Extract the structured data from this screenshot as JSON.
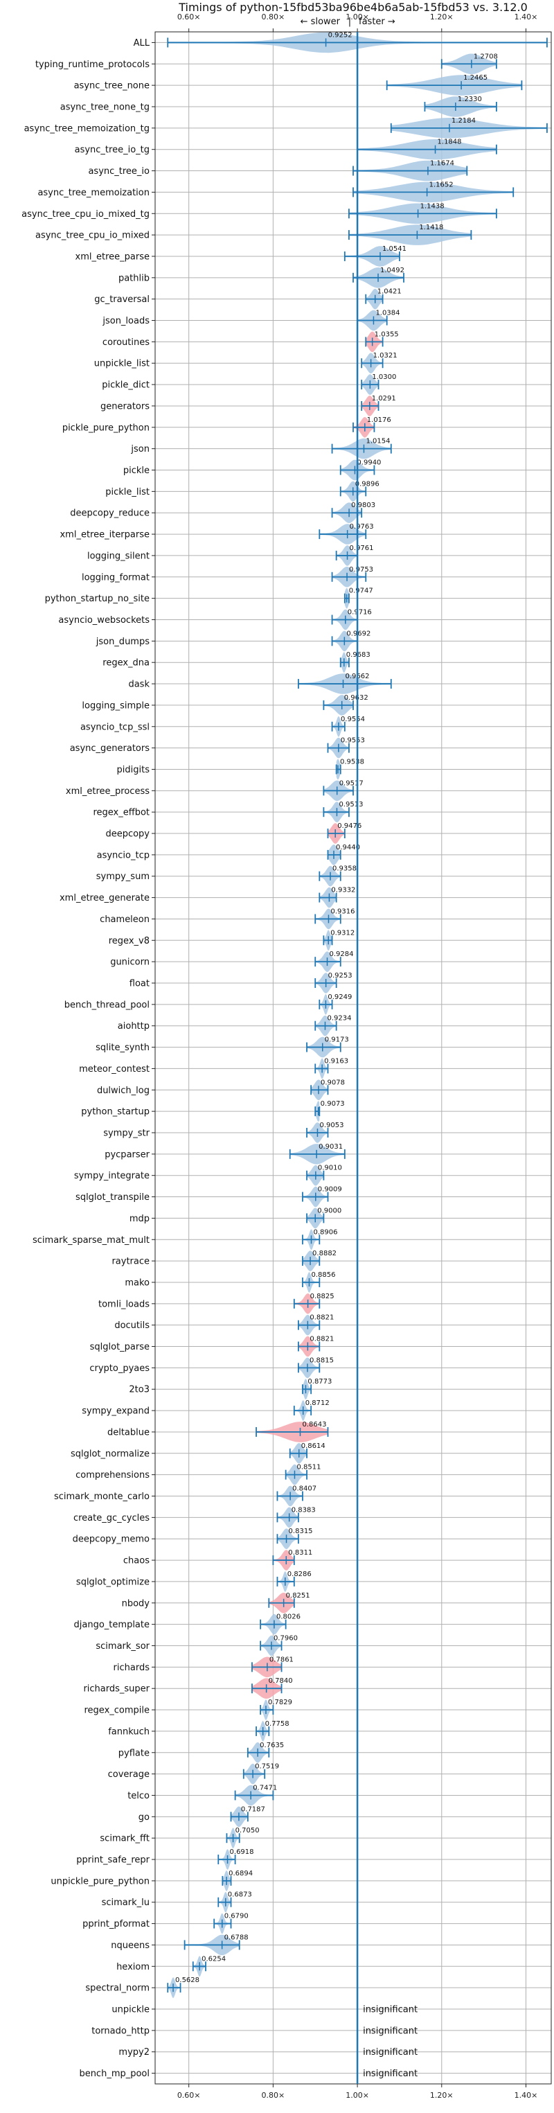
{
  "chart_data": {
    "type": "violin",
    "title": "Timings of python-15fbd53ba96be4b6a5ab-15fbd53 vs. 3.12.0",
    "subtitle_left": "← slower",
    "subtitle_sep": "|",
    "subtitle_right": "faster →",
    "xlim": [
      0.52,
      1.46
    ],
    "x_ticks": [
      0.6,
      0.8,
      1.0,
      1.2,
      1.4
    ],
    "x_tick_labels": [
      "0.60×",
      "0.80×",
      "1.00×",
      "1.20×",
      "1.40×"
    ],
    "reference_line": 1.0,
    "grid": true,
    "insignificant_label": "insignificant",
    "benchmarks": [
      {
        "name": "ALL",
        "value": 0.9252,
        "label": "0.9252",
        "lo": 0.55,
        "hi": 1.45,
        "spread": 0.16,
        "sig": true
      },
      {
        "name": "typing_runtime_protocols",
        "value": 1.2708,
        "label": "1.2708",
        "lo": 1.2,
        "hi": 1.33,
        "spread": 0.06,
        "sig": true
      },
      {
        "name": "async_tree_none",
        "value": 1.2465,
        "label": "1.2465",
        "lo": 1.07,
        "hi": 1.39,
        "spread": 0.14,
        "sig": true
      },
      {
        "name": "async_tree_none_tg",
        "value": 1.233,
        "label": "1.2330",
        "lo": 1.16,
        "hi": 1.33,
        "spread": 0.08,
        "sig": true
      },
      {
        "name": "async_tree_memoization_tg",
        "value": 1.2184,
        "label": "1.2184",
        "lo": 1.08,
        "hi": 1.45,
        "spread": 0.17,
        "sig": true
      },
      {
        "name": "async_tree_io_tg",
        "value": 1.1848,
        "label": "1.1848",
        "lo": 1.0,
        "hi": 1.33,
        "spread": 0.15,
        "sig": true
      },
      {
        "name": "async_tree_io",
        "value": 1.1674,
        "label": "1.1674",
        "lo": 0.99,
        "hi": 1.26,
        "spread": 0.12,
        "sig": true
      },
      {
        "name": "async_tree_memoization",
        "value": 1.1652,
        "label": "1.1652",
        "lo": 0.99,
        "hi": 1.37,
        "spread": 0.16,
        "sig": true
      },
      {
        "name": "async_tree_cpu_io_mixed_tg",
        "value": 1.1438,
        "label": "1.1438",
        "lo": 0.98,
        "hi": 1.33,
        "spread": 0.14,
        "sig": true
      },
      {
        "name": "async_tree_cpu_io_mixed",
        "value": 1.1418,
        "label": "1.1418",
        "lo": 0.98,
        "hi": 1.27,
        "spread": 0.13,
        "sig": true
      },
      {
        "name": "xml_etree_parse",
        "value": 1.0541,
        "label": "1.0541",
        "lo": 0.97,
        "hi": 1.1,
        "spread": 0.05,
        "sig": true
      },
      {
        "name": "pathlib",
        "value": 1.0492,
        "label": "1.0492",
        "lo": 0.99,
        "hi": 1.11,
        "spread": 0.05,
        "sig": true
      },
      {
        "name": "gc_traversal",
        "value": 1.0421,
        "label": "1.0421",
        "lo": 1.02,
        "hi": 1.06,
        "spread": 0.02,
        "sig": true
      },
      {
        "name": "json_loads",
        "value": 1.0384,
        "label": "1.0384",
        "lo": 1.0,
        "hi": 1.07,
        "spread": 0.03,
        "sig": true
      },
      {
        "name": "coroutines",
        "value": 1.0355,
        "label": "1.0355",
        "lo": 1.02,
        "hi": 1.06,
        "spread": 0.02,
        "sig": true
      },
      {
        "name": "unpickle_list",
        "value": 1.0321,
        "label": "1.0321",
        "lo": 1.01,
        "hi": 1.06,
        "spread": 0.02,
        "sig": true
      },
      {
        "name": "pickle_dict",
        "value": 1.03,
        "label": "1.0300",
        "lo": 1.01,
        "hi": 1.05,
        "spread": 0.02,
        "sig": true
      },
      {
        "name": "generators",
        "value": 1.0291,
        "label": "1.0291",
        "lo": 1.01,
        "hi": 1.05,
        "spread": 0.02,
        "sig": true
      },
      {
        "name": "pickle_pure_python",
        "value": 1.0176,
        "label": "1.0176",
        "lo": 0.99,
        "hi": 1.04,
        "spread": 0.02,
        "sig": true
      },
      {
        "name": "json",
        "value": 1.0154,
        "label": "1.0154",
        "lo": 0.94,
        "hi": 1.08,
        "spread": 0.05,
        "sig": true
      },
      {
        "name": "pickle",
        "value": 0.994,
        "label": "0.9940",
        "lo": 0.96,
        "hi": 1.04,
        "spread": 0.03,
        "sig": true
      },
      {
        "name": "pickle_list",
        "value": 0.9896,
        "label": "0.9896",
        "lo": 0.96,
        "hi": 1.02,
        "spread": 0.02,
        "sig": true
      },
      {
        "name": "deepcopy_reduce",
        "value": 0.9803,
        "label": "0.9803",
        "lo": 0.94,
        "hi": 1.01,
        "spread": 0.03,
        "sig": true
      },
      {
        "name": "xml_etree_iterparse",
        "value": 0.9763,
        "label": "0.9763",
        "lo": 0.91,
        "hi": 1.02,
        "spread": 0.04,
        "sig": true
      },
      {
        "name": "logging_silent",
        "value": 0.9761,
        "label": "0.9761",
        "lo": 0.95,
        "hi": 1.0,
        "spread": 0.02,
        "sig": true
      },
      {
        "name": "logging_format",
        "value": 0.9753,
        "label": "0.9753",
        "lo": 0.94,
        "hi": 1.02,
        "spread": 0.03,
        "sig": true
      },
      {
        "name": "python_startup_no_site",
        "value": 0.9747,
        "label": "0.9747",
        "lo": 0.97,
        "hi": 0.98,
        "spread": 0.01,
        "sig": true
      },
      {
        "name": "asyncio_websockets",
        "value": 0.9716,
        "label": "0.9716",
        "lo": 0.94,
        "hi": 1.0,
        "spread": 0.02,
        "sig": true
      },
      {
        "name": "json_dumps",
        "value": 0.9692,
        "label": "0.9692",
        "lo": 0.94,
        "hi": 1.0,
        "spread": 0.02,
        "sig": true
      },
      {
        "name": "regex_dna",
        "value": 0.9683,
        "label": "0.9683",
        "lo": 0.96,
        "hi": 0.98,
        "spread": 0.01,
        "sig": true
      },
      {
        "name": "dask",
        "value": 0.9662,
        "label": "0.9662",
        "lo": 0.86,
        "hi": 1.08,
        "spread": 0.07,
        "sig": true
      },
      {
        "name": "logging_simple",
        "value": 0.9632,
        "label": "0.9632",
        "lo": 0.92,
        "hi": 0.99,
        "spread": 0.03,
        "sig": true
      },
      {
        "name": "asyncio_tcp_ssl",
        "value": 0.9554,
        "label": "0.9554",
        "lo": 0.94,
        "hi": 0.97,
        "spread": 0.01,
        "sig": true
      },
      {
        "name": "async_generators",
        "value": 0.9553,
        "label": "0.9553",
        "lo": 0.93,
        "hi": 0.98,
        "spread": 0.02,
        "sig": true
      },
      {
        "name": "pidigits",
        "value": 0.9538,
        "label": "0.9538",
        "lo": 0.95,
        "hi": 0.96,
        "spread": 0.01,
        "sig": true
      },
      {
        "name": "xml_etree_process",
        "value": 0.9517,
        "label": "0.9517",
        "lo": 0.92,
        "hi": 0.99,
        "spread": 0.03,
        "sig": true
      },
      {
        "name": "regex_effbot",
        "value": 0.9513,
        "label": "0.9513",
        "lo": 0.92,
        "hi": 0.98,
        "spread": 0.02,
        "sig": true
      },
      {
        "name": "deepcopy",
        "value": 0.9476,
        "label": "0.9476",
        "lo": 0.93,
        "hi": 0.97,
        "spread": 0.02,
        "sig": true
      },
      {
        "name": "asyncio_tcp",
        "value": 0.944,
        "label": "0.9440",
        "lo": 0.93,
        "hi": 0.96,
        "spread": 0.02,
        "sig": true
      },
      {
        "name": "sympy_sum",
        "value": 0.9358,
        "label": "0.9358",
        "lo": 0.91,
        "hi": 0.96,
        "spread": 0.02,
        "sig": true
      },
      {
        "name": "xml_etree_generate",
        "value": 0.9332,
        "label": "0.9332",
        "lo": 0.91,
        "hi": 0.95,
        "spread": 0.02,
        "sig": true
      },
      {
        "name": "chameleon",
        "value": 0.9316,
        "label": "0.9316",
        "lo": 0.9,
        "hi": 0.96,
        "spread": 0.02,
        "sig": true
      },
      {
        "name": "regex_v8",
        "value": 0.9312,
        "label": "0.9312",
        "lo": 0.92,
        "hi": 0.94,
        "spread": 0.01,
        "sig": true
      },
      {
        "name": "gunicorn",
        "value": 0.9284,
        "label": "0.9284",
        "lo": 0.9,
        "hi": 0.96,
        "spread": 0.02,
        "sig": true
      },
      {
        "name": "float",
        "value": 0.9253,
        "label": "0.9253",
        "lo": 0.9,
        "hi": 0.95,
        "spread": 0.02,
        "sig": true
      },
      {
        "name": "bench_thread_pool",
        "value": 0.9249,
        "label": "0.9249",
        "lo": 0.91,
        "hi": 0.94,
        "spread": 0.01,
        "sig": true
      },
      {
        "name": "aiohttp",
        "value": 0.9234,
        "label": "0.9234",
        "lo": 0.9,
        "hi": 0.95,
        "spread": 0.02,
        "sig": true
      },
      {
        "name": "sqlite_synth",
        "value": 0.9173,
        "label": "0.9173",
        "lo": 0.88,
        "hi": 0.96,
        "spread": 0.03,
        "sig": true
      },
      {
        "name": "meteor_contest",
        "value": 0.9163,
        "label": "0.9163",
        "lo": 0.9,
        "hi": 0.93,
        "spread": 0.01,
        "sig": true
      },
      {
        "name": "dulwich_log",
        "value": 0.9078,
        "label": "0.9078",
        "lo": 0.89,
        "hi": 0.93,
        "spread": 0.02,
        "sig": true
      },
      {
        "name": "python_startup",
        "value": 0.9073,
        "label": "0.9073",
        "lo": 0.9,
        "hi": 0.91,
        "spread": 0.01,
        "sig": true
      },
      {
        "name": "sympy_str",
        "value": 0.9053,
        "label": "0.9053",
        "lo": 0.88,
        "hi": 0.93,
        "spread": 0.02,
        "sig": true
      },
      {
        "name": "pycparser",
        "value": 0.9031,
        "label": "0.9031",
        "lo": 0.84,
        "hi": 0.97,
        "spread": 0.05,
        "sig": true
      },
      {
        "name": "sympy_integrate",
        "value": 0.901,
        "label": "0.9010",
        "lo": 0.88,
        "hi": 0.92,
        "spread": 0.02,
        "sig": true
      },
      {
        "name": "sqlglot_transpile",
        "value": 0.9009,
        "label": "0.9009",
        "lo": 0.87,
        "hi": 0.93,
        "spread": 0.02,
        "sig": true
      },
      {
        "name": "mdp",
        "value": 0.9,
        "label": "0.9000",
        "lo": 0.88,
        "hi": 0.92,
        "spread": 0.02,
        "sig": true
      },
      {
        "name": "scimark_sparse_mat_mult",
        "value": 0.8906,
        "label": "0.8906",
        "lo": 0.87,
        "hi": 0.91,
        "spread": 0.01,
        "sig": true
      },
      {
        "name": "raytrace",
        "value": 0.8882,
        "label": "0.8882",
        "lo": 0.87,
        "hi": 0.91,
        "spread": 0.02,
        "sig": true
      },
      {
        "name": "mako",
        "value": 0.8856,
        "label": "0.8856",
        "lo": 0.87,
        "hi": 0.91,
        "spread": 0.01,
        "sig": true
      },
      {
        "name": "tomli_loads",
        "value": 0.8825,
        "label": "0.8825",
        "lo": 0.85,
        "hi": 0.91,
        "spread": 0.02,
        "sig": true
      },
      {
        "name": "docutils",
        "value": 0.8821,
        "label": "0.8821",
        "lo": 0.86,
        "hi": 0.91,
        "spread": 0.02,
        "sig": true
      },
      {
        "name": "sqlglot_parse",
        "value": 0.8821,
        "label": "0.8821",
        "lo": 0.86,
        "hi": 0.91,
        "spread": 0.02,
        "sig": true
      },
      {
        "name": "crypto_pyaes",
        "value": 0.8815,
        "label": "0.8815",
        "lo": 0.86,
        "hi": 0.91,
        "spread": 0.02,
        "sig": true
      },
      {
        "name": "2to3",
        "value": 0.8773,
        "label": "0.8773",
        "lo": 0.87,
        "hi": 0.89,
        "spread": 0.01,
        "sig": true
      },
      {
        "name": "sympy_expand",
        "value": 0.8712,
        "label": "0.8712",
        "lo": 0.85,
        "hi": 0.89,
        "spread": 0.01,
        "sig": true
      },
      {
        "name": "deltablue",
        "value": 0.8643,
        "label": "0.8643",
        "lo": 0.76,
        "hi": 0.93,
        "spread": 0.08,
        "sig": true
      },
      {
        "name": "sqlglot_normalize",
        "value": 0.8614,
        "label": "0.8614",
        "lo": 0.84,
        "hi": 0.88,
        "spread": 0.02,
        "sig": true
      },
      {
        "name": "comprehensions",
        "value": 0.8511,
        "label": "0.8511",
        "lo": 0.83,
        "hi": 0.88,
        "spread": 0.02,
        "sig": true
      },
      {
        "name": "scimark_monte_carlo",
        "value": 0.8407,
        "label": "0.8407",
        "lo": 0.81,
        "hi": 0.87,
        "spread": 0.02,
        "sig": true
      },
      {
        "name": "create_gc_cycles",
        "value": 0.8383,
        "label": "0.8383",
        "lo": 0.81,
        "hi": 0.86,
        "spread": 0.02,
        "sig": true
      },
      {
        "name": "deepcopy_memo",
        "value": 0.8315,
        "label": "0.8315",
        "lo": 0.81,
        "hi": 0.86,
        "spread": 0.02,
        "sig": true
      },
      {
        "name": "chaos",
        "value": 0.8311,
        "label": "0.8311",
        "lo": 0.8,
        "hi": 0.85,
        "spread": 0.02,
        "sig": true
      },
      {
        "name": "sqlglot_optimize",
        "value": 0.8286,
        "label": "0.8286",
        "lo": 0.81,
        "hi": 0.85,
        "spread": 0.01,
        "sig": true
      },
      {
        "name": "nbody",
        "value": 0.8251,
        "label": "0.8251",
        "lo": 0.79,
        "hi": 0.85,
        "spread": 0.03,
        "sig": true
      },
      {
        "name": "django_template",
        "value": 0.8026,
        "label": "0.8026",
        "lo": 0.77,
        "hi": 0.83,
        "spread": 0.02,
        "sig": true
      },
      {
        "name": "scimark_sor",
        "value": 0.796,
        "label": "0.7960",
        "lo": 0.77,
        "hi": 0.82,
        "spread": 0.02,
        "sig": true
      },
      {
        "name": "richards",
        "value": 0.7861,
        "label": "0.7861",
        "lo": 0.75,
        "hi": 0.82,
        "spread": 0.04,
        "sig": true
      },
      {
        "name": "richards_super",
        "value": 0.784,
        "label": "0.7840",
        "lo": 0.75,
        "hi": 0.82,
        "spread": 0.04,
        "sig": true
      },
      {
        "name": "regex_compile",
        "value": 0.7829,
        "label": "0.7829",
        "lo": 0.77,
        "hi": 0.8,
        "spread": 0.01,
        "sig": true
      },
      {
        "name": "fannkuch",
        "value": 0.7758,
        "label": "0.7758",
        "lo": 0.76,
        "hi": 0.79,
        "spread": 0.01,
        "sig": true
      },
      {
        "name": "pyflate",
        "value": 0.7635,
        "label": "0.7635",
        "lo": 0.74,
        "hi": 0.79,
        "spread": 0.02,
        "sig": true
      },
      {
        "name": "coverage",
        "value": 0.7519,
        "label": "0.7519",
        "lo": 0.73,
        "hi": 0.78,
        "spread": 0.02,
        "sig": true
      },
      {
        "name": "telco",
        "value": 0.7471,
        "label": "0.7471",
        "lo": 0.71,
        "hi": 0.8,
        "spread": 0.03,
        "sig": true
      },
      {
        "name": "go",
        "value": 0.7187,
        "label": "0.7187",
        "lo": 0.7,
        "hi": 0.74,
        "spread": 0.02,
        "sig": true
      },
      {
        "name": "scimark_fft",
        "value": 0.705,
        "label": "0.7050",
        "lo": 0.69,
        "hi": 0.72,
        "spread": 0.01,
        "sig": true
      },
      {
        "name": "pprint_safe_repr",
        "value": 0.6918,
        "label": "0.6918",
        "lo": 0.67,
        "hi": 0.71,
        "spread": 0.01,
        "sig": true
      },
      {
        "name": "unpickle_pure_python",
        "value": 0.6894,
        "label": "0.6894",
        "lo": 0.68,
        "hi": 0.7,
        "spread": 0.01,
        "sig": true
      },
      {
        "name": "scimark_lu",
        "value": 0.6873,
        "label": "0.6873",
        "lo": 0.67,
        "hi": 0.7,
        "spread": 0.01,
        "sig": true
      },
      {
        "name": "pprint_pformat",
        "value": 0.679,
        "label": "0.6790",
        "lo": 0.66,
        "hi": 0.7,
        "spread": 0.01,
        "sig": true
      },
      {
        "name": "nqueens",
        "value": 0.6788,
        "label": "0.6788",
        "lo": 0.59,
        "hi": 0.72,
        "spread": 0.04,
        "sig": true
      },
      {
        "name": "hexiom",
        "value": 0.6254,
        "label": "0.6254",
        "lo": 0.61,
        "hi": 0.64,
        "spread": 0.01,
        "sig": true
      },
      {
        "name": "spectral_norm",
        "value": 0.5628,
        "label": "0.5628",
        "lo": 0.55,
        "hi": 0.58,
        "spread": 0.01,
        "sig": true
      },
      {
        "name": "unpickle",
        "value": null,
        "label": "",
        "lo": null,
        "hi": null,
        "spread": 0,
        "sig": false
      },
      {
        "name": "tornado_http",
        "value": null,
        "label": "",
        "lo": null,
        "hi": null,
        "spread": 0,
        "sig": false
      },
      {
        "name": "mypy2",
        "value": null,
        "label": "",
        "lo": null,
        "hi": null,
        "spread": 0,
        "sig": false
      },
      {
        "name": "bench_mp_pool",
        "value": null,
        "label": "",
        "lo": null,
        "hi": null,
        "spread": 0,
        "sig": false
      }
    ],
    "highlighted": [
      "coroutines",
      "generators",
      "pickle_pure_python",
      "deepcopy",
      "tomli_loads",
      "sqlglot_parse",
      "deltablue",
      "chaos",
      "nbody",
      "richards",
      "richards_super"
    ],
    "colors": {
      "violin": "#a9c8e4",
      "violin_highlight": "#f4a6ad",
      "line": "#1f77b4",
      "grid": "#b0b0b0",
      "text": "#111111"
    }
  }
}
